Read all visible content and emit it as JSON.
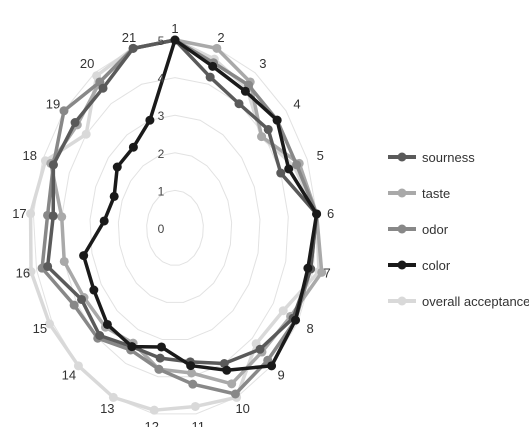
{
  "chart_data": {
    "type": "radar",
    "title": "",
    "rmin": 0,
    "rmax": 5,
    "ring_ticks": [
      0,
      1,
      2,
      3,
      4,
      5
    ],
    "grid": true,
    "legend_position": "right",
    "categories": [
      "1",
      "2",
      "3",
      "4",
      "5",
      "6",
      "7",
      "8",
      "9",
      "10",
      "11",
      "12",
      "13",
      "14",
      "15",
      "16",
      "17",
      "18",
      "19",
      "20",
      "21"
    ],
    "series": [
      {
        "name": "sourness",
        "color": "#5a5a5a",
        "values": [
          5.0,
          4.2,
          4.0,
          4.2,
          4.0,
          5.0,
          4.9,
          4.8,
          4.4,
          4.0,
          3.6,
          3.5,
          3.5,
          3.9,
          3.8,
          4.6,
          4.3,
          4.6,
          4.5,
          4.5,
          5.0
        ]
      },
      {
        "name": "taste",
        "color": "#a9a9a9",
        "values": [
          5.0,
          5.0,
          4.7,
          3.9,
          4.7,
          5.0,
          5.3,
          4.7,
          4.5,
          4.6,
          3.9,
          3.8,
          3.4,
          3.6,
          3.7,
          4.0,
          4.0,
          4.7,
          4.4,
          4.7,
          5.0
        ]
      },
      {
        "name": "odor",
        "color": "#888888",
        "values": [
          5.0,
          4.6,
          4.6,
          4.6,
          4.6,
          5.0,
          4.9,
          4.9,
          4.8,
          4.9,
          4.2,
          3.8,
          3.6,
          4.0,
          4.1,
          4.8,
          4.5,
          4.6,
          5.0,
          4.7,
          5.0
        ]
      },
      {
        "name": "color",
        "color": "#1a1a1a",
        "values": [
          5.0,
          4.5,
          4.4,
          4.6,
          4.3,
          5.0,
          4.8,
          4.9,
          5.0,
          4.2,
          3.7,
          3.2,
          3.5,
          3.5,
          3.3,
          3.3,
          2.5,
          2.3,
          2.6,
          2.6,
          3.0
        ]
      },
      {
        "name": "overall acceptance",
        "color": "#d9d9d9",
        "values": [
          5.0,
          4.7,
          4.5,
          3.9,
          4.5,
          5.0,
          5.2,
          4.4,
          4.2,
          5.0,
          4.8,
          4.9,
          5.0,
          5.0,
          5.1,
          5.2,
          5.1,
          4.9,
          4.0,
          4.9,
          5.0
        ]
      }
    ]
  }
}
